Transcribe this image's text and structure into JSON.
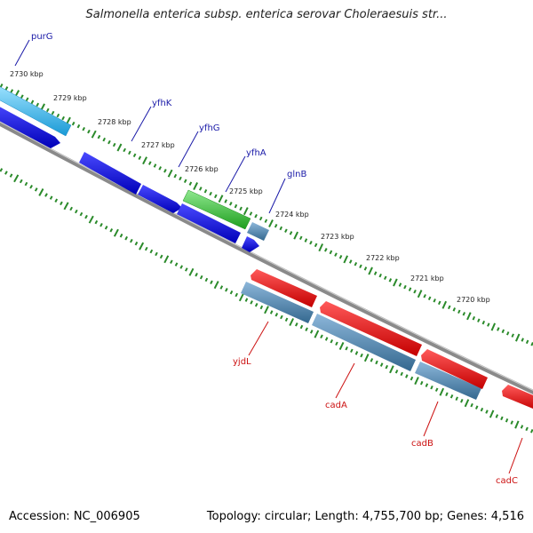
{
  "title": "Salmonella enterica subsp. enterica serovar Choleraesuis str...",
  "accession_text": "Accession: NC_006905",
  "topology_text": "Topology: circular; Length: 4,755,700 bp; Genes: 4,516",
  "colors": {
    "backbone": "#808080",
    "ticks": "#2a8a2a",
    "tick_label": "#222222",
    "gene_label_forward": "#1a1aa8",
    "gene_label_reverse": "#cc1111",
    "cyan_gene": "#2ab0e8",
    "blue_gene": "#1010e0",
    "green_gene": "#30c030",
    "steel_gene": "#4682b4",
    "red_gene": "#ee1111"
  },
  "tick_labels": [
    "2730 kbp",
    "2729 kbp",
    "2728 kbp",
    "2727 kbp",
    "2726 kbp",
    "2725 kbp",
    "2724 kbp",
    "2723 kbp",
    "2722 kbp",
    "2721 kbp",
    "2720 kbp"
  ],
  "genes": [
    {
      "name": "purG",
      "strand": "forward",
      "color": "cyan_gene"
    },
    {
      "name": "yfhK",
      "strand": "forward",
      "color": "blue_gene"
    },
    {
      "name": "yfhG",
      "strand": "forward",
      "color": "blue_gene"
    },
    {
      "name": "yfhA",
      "strand": "forward",
      "color": "green_gene"
    },
    {
      "name": "glnB",
      "strand": "forward",
      "color": "steel_gene"
    },
    {
      "name": "yjdL",
      "strand": "reverse",
      "color": "steel_gene"
    },
    {
      "name": "cadA",
      "strand": "reverse",
      "color": "red_gene"
    },
    {
      "name": "cadB",
      "strand": "reverse",
      "color": "red_gene"
    },
    {
      "name": "cadC",
      "strand": "reverse",
      "color": "red_gene"
    }
  ]
}
